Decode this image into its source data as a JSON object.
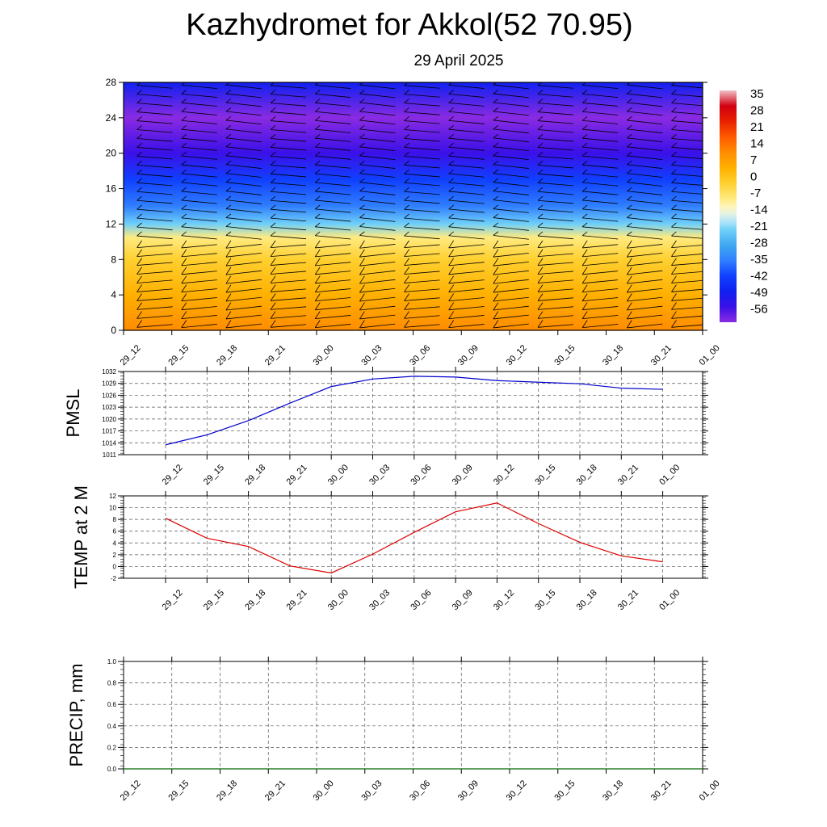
{
  "page": {
    "title": "Kazhydromet for Akkol(52 70.95)",
    "subtitle": "29 April 2025"
  },
  "chart_data": [
    {
      "type": "heatmap",
      "name": "cross-section",
      "ylim": [
        0,
        28
      ],
      "yticks": [
        0,
        4,
        8,
        12,
        16,
        20,
        24,
        28
      ],
      "x_tick_labels": [
        "29_12",
        "29_15",
        "29_18",
        "29_21",
        "30_00",
        "30_03",
        "30_06",
        "30_09",
        "30_12",
        "30_15",
        "30_18",
        "30_21",
        "01_00"
      ],
      "colorbar": {
        "labels": [
          "35",
          "28",
          "21",
          "14",
          "7",
          "0",
          "-7",
          "-14",
          "-21",
          "-28",
          "-35",
          "-42",
          "-49",
          "-56"
        ],
        "range": [
          -63,
          42
        ]
      },
      "temperature_profile_approx": [
        {
          "height": 0,
          "value": 14
        },
        {
          "height": 4,
          "value": 7
        },
        {
          "height": 8,
          "value": 0
        },
        {
          "height": 10.5,
          "value": -7
        },
        {
          "height": 12,
          "value": -21
        },
        {
          "height": 14,
          "value": -35
        },
        {
          "height": 17,
          "value": -42
        },
        {
          "height": 20,
          "value": -56
        },
        {
          "height": 24,
          "value": -63
        },
        {
          "height": 28,
          "value": -49
        }
      ]
    },
    {
      "type": "line",
      "name": "pmsl",
      "ylabel": "PMSL",
      "ylim": [
        1011,
        1032
      ],
      "yticks": [
        1011,
        1014,
        1017,
        1020,
        1023,
        1026,
        1029,
        1032
      ],
      "x": [
        "29_12",
        "29_15",
        "29_18",
        "29_21",
        "30_00",
        "30_03",
        "30_06",
        "30_09",
        "30_12",
        "30_15",
        "30_18",
        "30_21",
        "01_00"
      ],
      "series": [
        {
          "values": [
            1013.5,
            1016.0,
            1019.6,
            1024.0,
            1028.2,
            1030.1,
            1030.8,
            1030.6,
            1029.7,
            1029.3,
            1028.9,
            1027.8,
            1027.5
          ],
          "color": "#0000cc"
        }
      ]
    },
    {
      "type": "line",
      "name": "temp",
      "ylabel": "TEMP at 2 M",
      "ylim": [
        -2,
        12
      ],
      "yticks": [
        -2,
        0,
        2,
        4,
        6,
        8,
        10,
        12
      ],
      "x": [
        "29_12",
        "29_15",
        "29_18",
        "29_21",
        "30_00",
        "30_03",
        "30_06",
        "30_09",
        "30_12",
        "30_15",
        "30_18",
        "30_21",
        "01_00"
      ],
      "series": [
        {
          "values": [
            8.2,
            4.8,
            3.4,
            0.1,
            -1.1,
            2.1,
            5.8,
            9.3,
            10.8,
            7.3,
            4.1,
            1.8,
            0.8
          ],
          "color": "#dd0000"
        }
      ]
    },
    {
      "type": "line",
      "name": "precip",
      "ylabel": "PRECIP, mm",
      "ylim": [
        0,
        1
      ],
      "yticks": [
        "0.0",
        "0.2",
        "0.4",
        "0.6",
        "0.8",
        "1.0"
      ],
      "x": [
        "29_12",
        "29_15",
        "29_18",
        "29_21",
        "30_00",
        "30_03",
        "30_06",
        "30_09",
        "30_12",
        "30_15",
        "30_18",
        "30_21",
        "01_00"
      ],
      "series": [
        {
          "values": [
            0,
            0,
            0,
            0,
            0,
            0,
            0,
            0,
            0,
            0,
            0,
            0,
            0
          ],
          "color": "#006600"
        }
      ]
    }
  ]
}
